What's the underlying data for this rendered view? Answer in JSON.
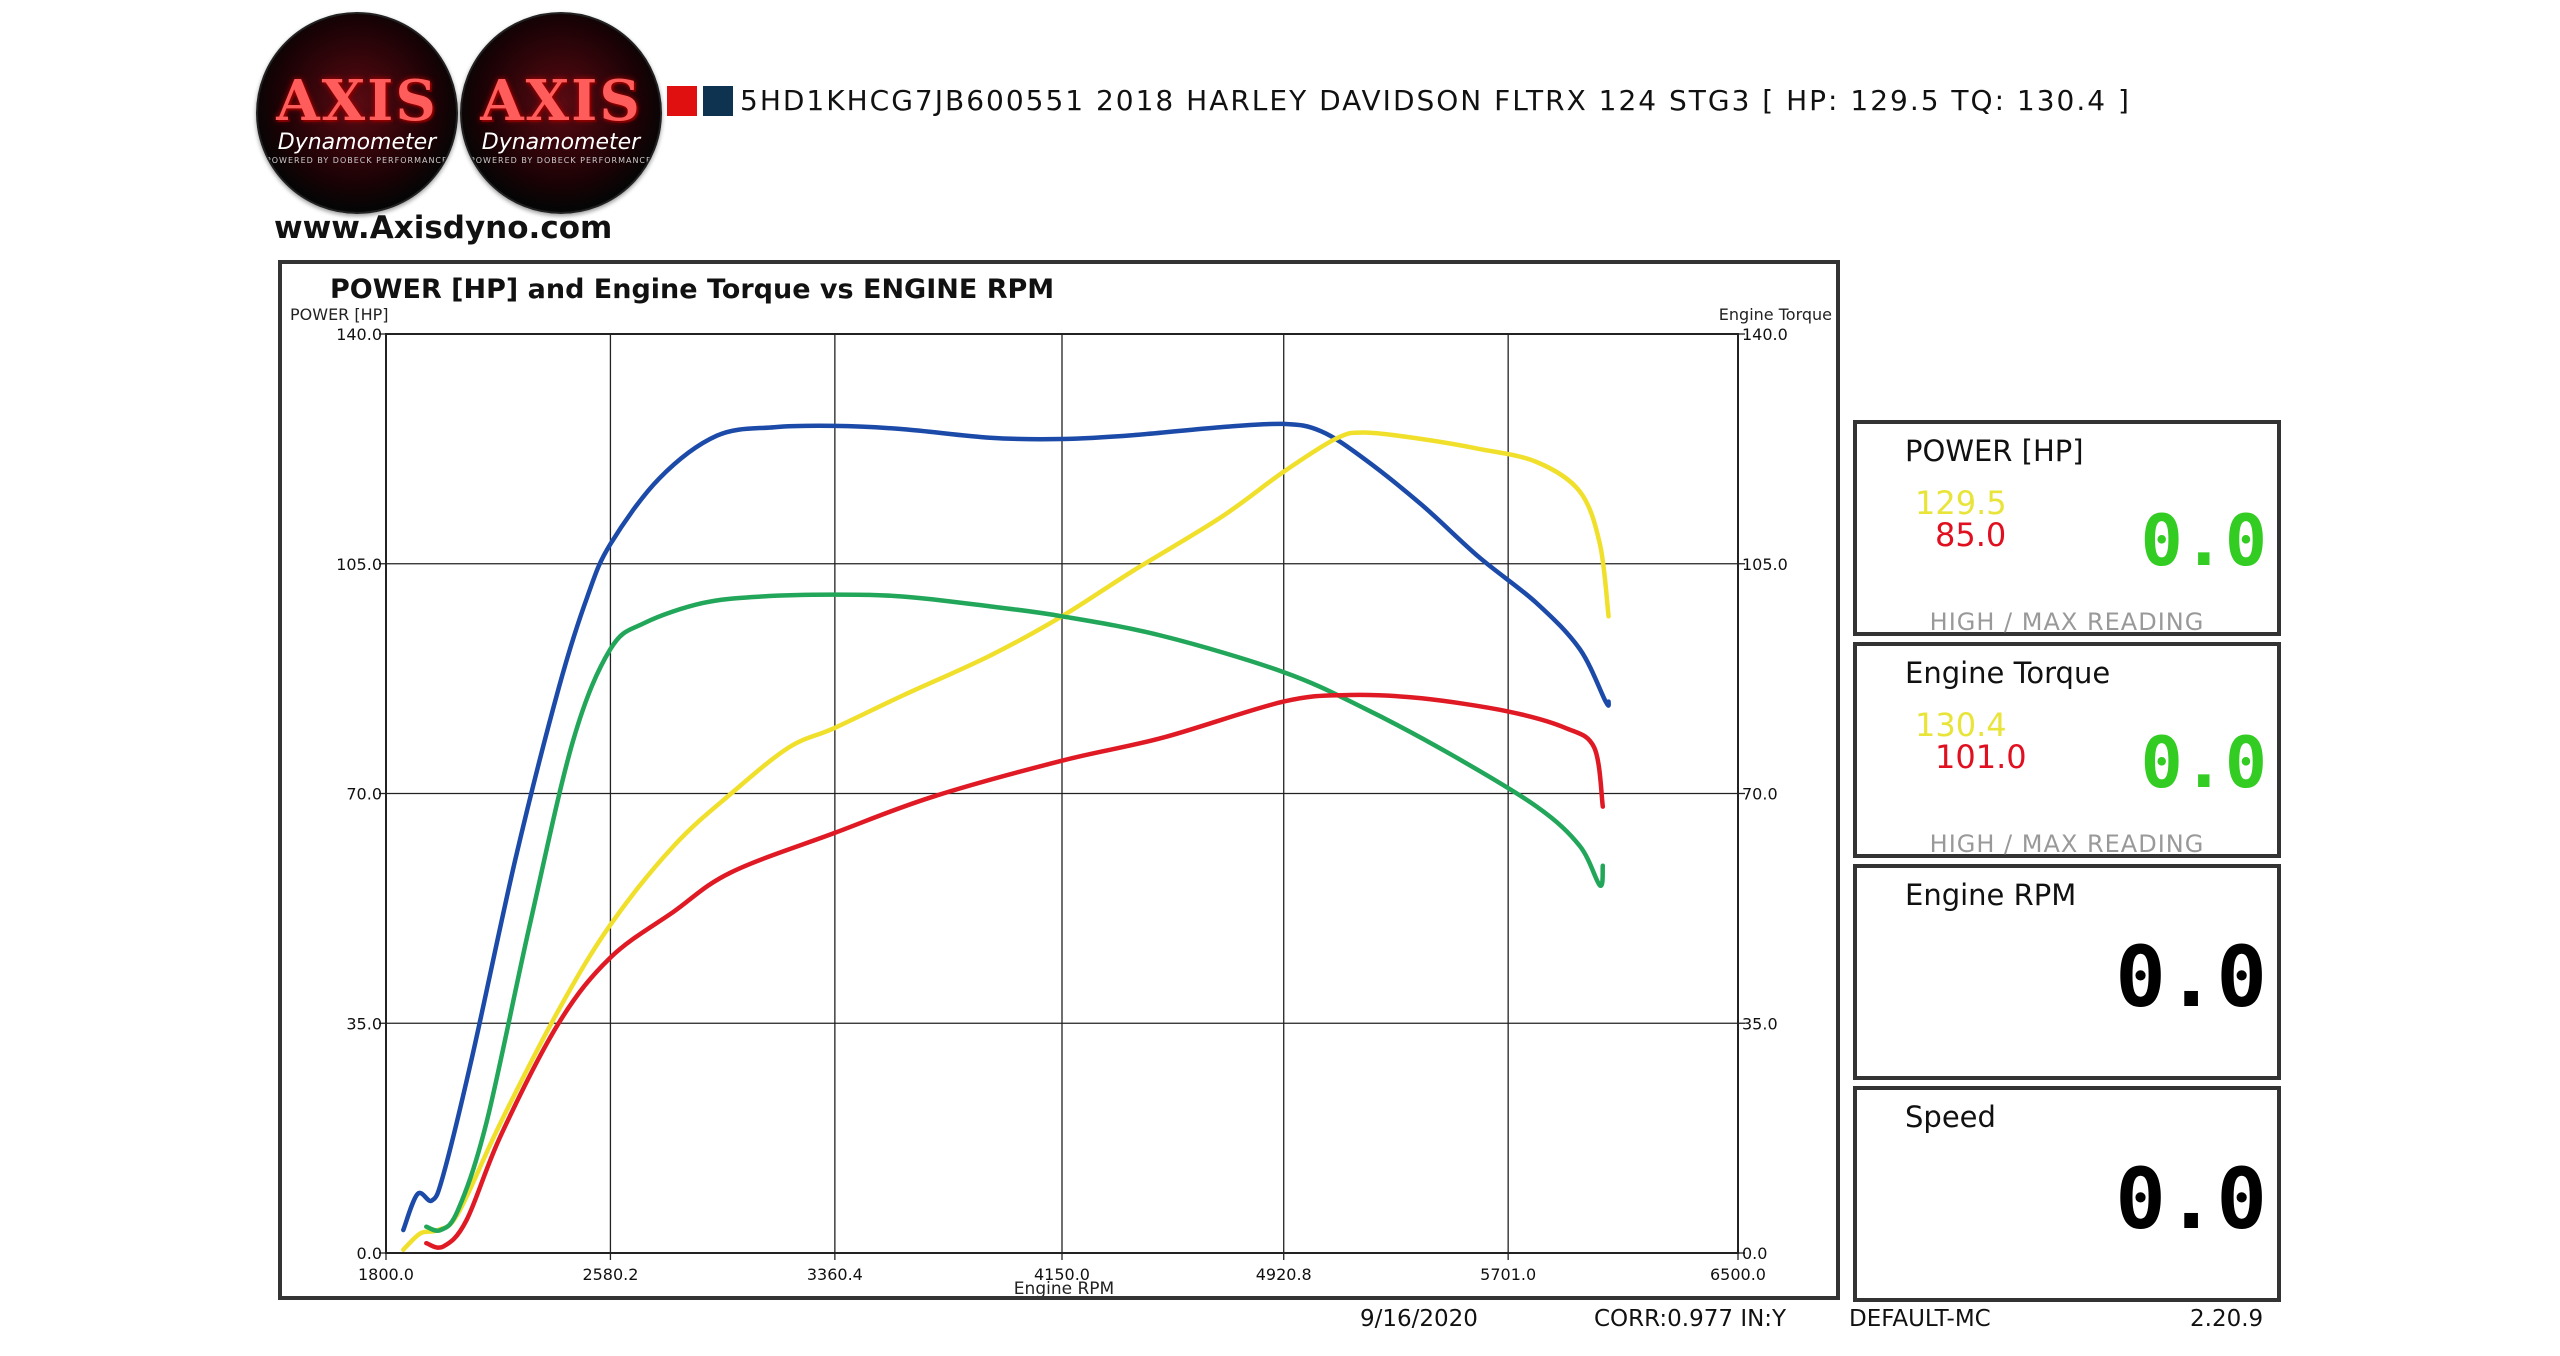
{
  "logos": [
    {
      "brand": "AXIS",
      "subtitle": "Dynamometer",
      "tagline": "POWERED BY DOBECK PERFORMANCE"
    },
    {
      "brand": "AXIS",
      "subtitle": "Dynamometer",
      "tagline": "POWERED BY DOBECK PERFORMANCE"
    }
  ],
  "website": "www.Axisdyno.com",
  "run_title": "5HD1KHCG7JB600551 2018 HARLEY DAVIDSON FLTRX 124 STG3 [ HP: 129.5 TQ: 130.4 ]",
  "swatch_colors": [
    "#e01010",
    "#0d3350"
  ],
  "panels": {
    "power": {
      "title": "POWER [HP]",
      "high": "129.5",
      "max": "85.0",
      "value": "0.0",
      "footer": "HIGH / MAX READING"
    },
    "torque": {
      "title": "Engine Torque",
      "high": "130.4",
      "max": "101.0",
      "value": "0.0",
      "footer": "HIGH / MAX READING"
    },
    "rpm": {
      "title": "Engine RPM",
      "value": "0.0"
    },
    "speed": {
      "title": "Speed",
      "value": "0.0"
    }
  },
  "footer": {
    "date": "9/16/2020",
    "corr": "CORR:0.977 IN:Y",
    "profile": "DEFAULT-MC",
    "version": "2.20.9"
  },
  "chart_data": {
    "type": "line",
    "title": "POWER [HP] and Engine Torque vs ENGINE RPM",
    "ylabel": "POWER [HP]",
    "y2label": "Engine Torque",
    "xlabel": "Engine RPM",
    "xlim": [
      1800.0,
      6500.0
    ],
    "ylim": [
      0.0,
      140.0
    ],
    "xticks": [
      "1800.0",
      "2580.2",
      "3360.4",
      "4150.0",
      "4920.8",
      "5701.0",
      "6500.0"
    ],
    "yticks": [
      "0.0",
      "35.0",
      "70.0",
      "105.0",
      "140.0"
    ],
    "grid": true,
    "colors": {
      "blue": "#1c4aa8",
      "yellow": "#f0e02c",
      "green": "#22a65a",
      "red": "#e01a24"
    },
    "series": [
      {
        "color": "#1c4aa8",
        "x": [
          1860,
          1910,
          1960,
          2000,
          2100,
          2250,
          2400,
          2500,
          2580,
          2750,
          2950,
          3150,
          3360,
          3600,
          3900,
          4150,
          4400,
          4700,
          4920,
          5050,
          5200,
          5400,
          5600,
          5800,
          5950,
          6040,
          6050
        ],
        "y": [
          3.5,
          9,
          8,
          12,
          30,
          60,
          86,
          100,
          108,
          118,
          124.5,
          125.8,
          126,
          125.5,
          124.2,
          124,
          124.6,
          125.8,
          126.3,
          125.2,
          121,
          114,
          106,
          99,
          92,
          84,
          84
        ]
      },
      {
        "color": "#f0e02c",
        "x": [
          1860,
          1920,
          1980,
          2050,
          2200,
          2400,
          2580,
          2800,
          3000,
          3200,
          3360,
          3600,
          3900,
          4150,
          4400,
          4700,
          4920,
          5100,
          5200,
          5400,
          5600,
          5800,
          5950,
          6020,
          6050
        ],
        "y": [
          0.5,
          3,
          3.5,
          6,
          20,
          37,
          50,
          62,
          70,
          77,
          80,
          85,
          91,
          97,
          104,
          112,
          119,
          124,
          125,
          124,
          122.5,
          120.5,
          116,
          108,
          97
        ]
      },
      {
        "color": "#22a65a",
        "x": [
          1940,
          1990,
          2050,
          2150,
          2300,
          2450,
          2580,
          2700,
          2900,
          3100,
          3360,
          3600,
          3900,
          4150,
          4500,
          4920,
          5200,
          5500,
          5800,
          5950,
          6020,
          6030
        ],
        "y": [
          4,
          3.5,
          6.5,
          20,
          50,
          78,
          92,
          96,
          99,
          100,
          100.3,
          100,
          98.5,
          97,
          94,
          88.5,
          83,
          76,
          68,
          62,
          56,
          59
        ]
      },
      {
        "color": "#e01a24",
        "x": [
          1940,
          2000,
          2080,
          2200,
          2400,
          2580,
          2800,
          3000,
          3360,
          3700,
          4150,
          4500,
          4920,
          5150,
          5400,
          5700,
          5900,
          6000,
          6030
        ],
        "y": [
          1.5,
          1,
          5,
          18,
          35,
          45,
          52,
          58,
          64,
          69.5,
          75,
          78.5,
          84,
          85,
          84.5,
          82.5,
          80,
          77,
          68
        ]
      }
    ]
  }
}
